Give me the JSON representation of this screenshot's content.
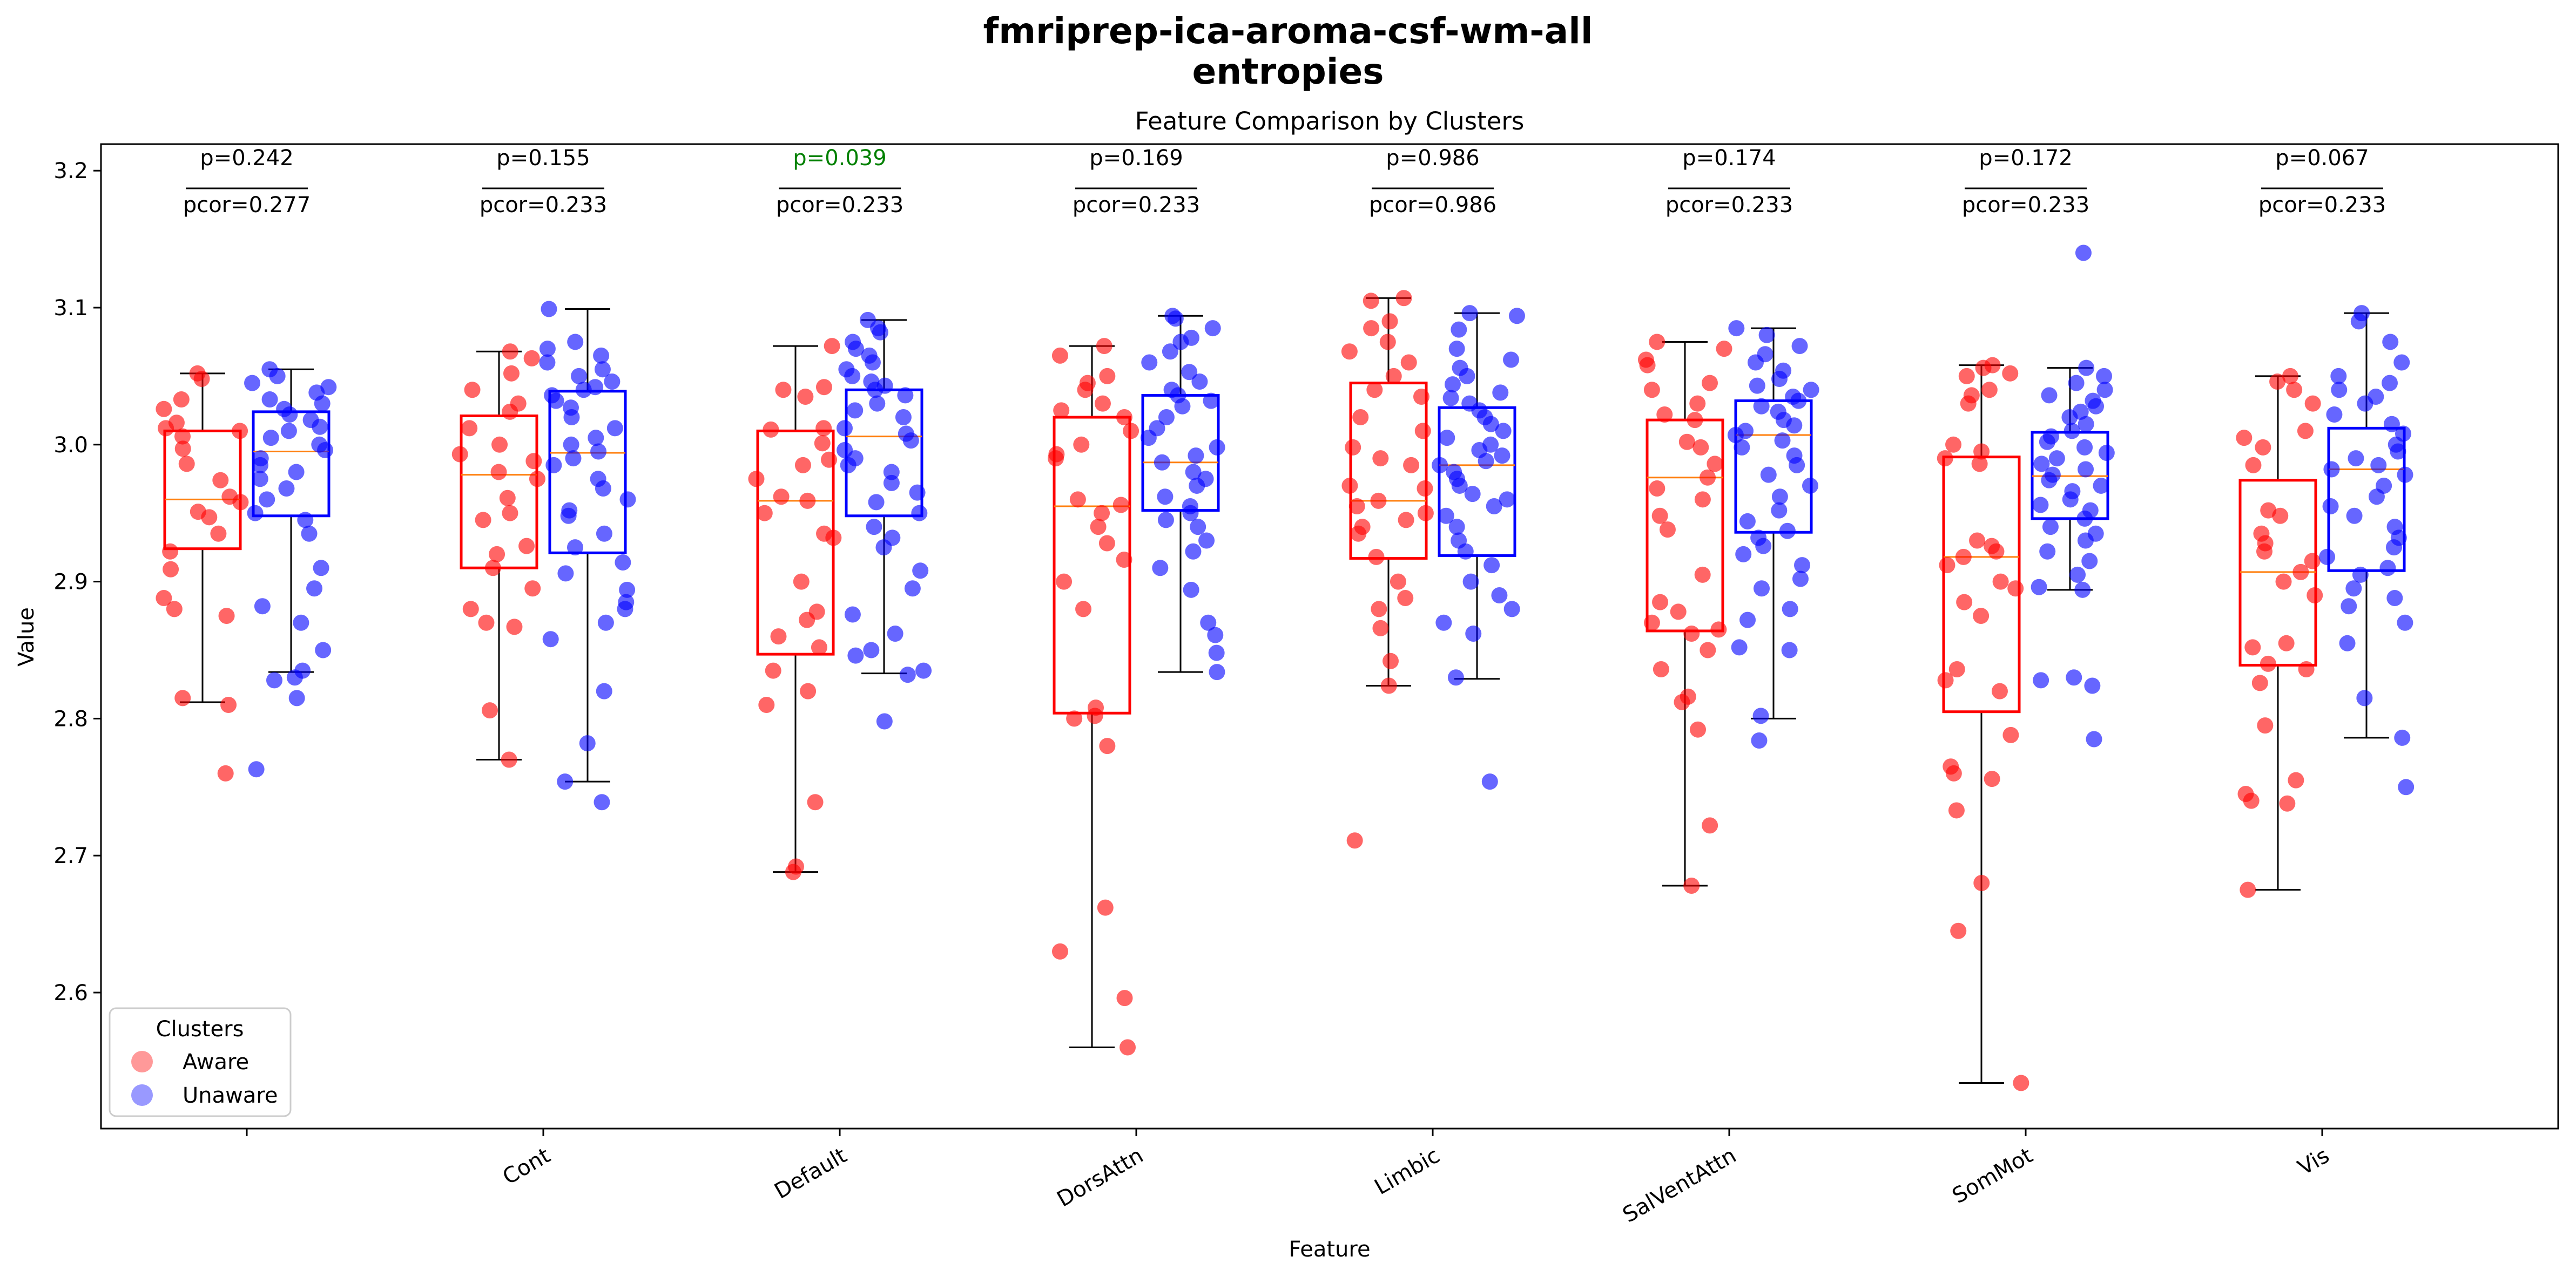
{
  "figure": {
    "title_line1": "fmriprep-ica-aroma-csf-wm-all",
    "title_line2": "entropies"
  },
  "chart_data": {
    "type": "box",
    "title": "Feature Comparison by Clusters",
    "xlabel": "Feature",
    "ylabel": "Value",
    "ylim": [
      2.5,
      3.22
    ],
    "yticks": [
      "2.6",
      "2.7",
      "2.8",
      "2.9",
      "3.0",
      "3.1",
      "3.2"
    ],
    "categories": [
      "",
      "Cont",
      "Default",
      "DorsAttn",
      "Limbic",
      "SalVentAttn",
      "SomMot",
      "Vis"
    ],
    "series": [
      {
        "name": "Aware",
        "color": "#ff0000"
      },
      {
        "name": "Unaware",
        "color": "#0000ff"
      }
    ],
    "legend": {
      "title": "Clusters",
      "position": "lower-left",
      "labels": [
        "Aware",
        "Unaware"
      ]
    },
    "median_color": "#ff7f0e",
    "significant_color": "#008000",
    "groups": [
      {
        "p": "p=0.242",
        "pcor": "pcor=0.277",
        "significant": false,
        "aware": {
          "whislo": 2.812,
          "q1": 2.924,
          "med": 2.96,
          "q3": 3.01,
          "whishi": 3.052,
          "points": [
            3.052,
            3.048,
            3.033,
            3.026,
            3.016,
            3.012,
            3.01,
            3.006,
            2.997,
            2.986,
            2.974,
            2.962,
            2.958,
            2.951,
            2.947,
            2.935,
            2.922,
            2.909,
            2.888,
            2.88,
            2.875,
            2.815,
            2.81,
            2.76
          ]
        },
        "unaware": {
          "whislo": 2.834,
          "q1": 2.948,
          "med": 2.995,
          "q3": 3.024,
          "whishi": 3.055,
          "points": [
            3.055,
            3.05,
            3.045,
            3.042,
            3.038,
            3.033,
            3.03,
            3.026,
            3.022,
            3.018,
            3.013,
            3.01,
            3.005,
            3.0,
            2.996,
            2.99,
            2.985,
            2.98,
            2.975,
            2.968,
            2.96,
            2.95,
            2.945,
            2.935,
            2.91,
            2.895,
            2.882,
            2.87,
            2.85,
            2.835,
            2.83,
            2.828,
            2.815,
            2.763
          ]
        }
      },
      {
        "p": "p=0.155",
        "pcor": "pcor=0.233",
        "significant": false,
        "aware": {
          "whislo": 2.77,
          "q1": 2.91,
          "med": 2.978,
          "q3": 3.021,
          "whishi": 3.068,
          "points": [
            3.068,
            3.063,
            3.052,
            3.04,
            3.03,
            3.024,
            3.012,
            3.0,
            2.993,
            2.988,
            2.98,
            2.975,
            2.961,
            2.95,
            2.945,
            2.926,
            2.92,
            2.91,
            2.895,
            2.88,
            2.87,
            2.867,
            2.806,
            2.77
          ]
        },
        "unaware": {
          "whislo": 2.754,
          "q1": 2.921,
          "med": 2.994,
          "q3": 3.039,
          "whishi": 3.099,
          "points": [
            3.099,
            3.075,
            3.07,
            3.065,
            3.06,
            3.055,
            3.05,
            3.046,
            3.042,
            3.04,
            3.036,
            3.032,
            3.027,
            3.02,
            3.012,
            3.005,
            3.0,
            2.995,
            2.99,
            2.985,
            2.975,
            2.968,
            2.96,
            2.952,
            2.948,
            2.935,
            2.925,
            2.914,
            2.906,
            2.894,
            2.885,
            2.88,
            2.87,
            2.858,
            2.82,
            2.782,
            2.754,
            2.739
          ]
        }
      },
      {
        "p": "p=0.039",
        "pcor": "pcor=0.233",
        "significant": true,
        "aware": {
          "whislo": 2.688,
          "q1": 2.847,
          "med": 2.959,
          "q3": 3.01,
          "whishi": 3.072,
          "points": [
            3.072,
            3.042,
            3.04,
            3.035,
            3.012,
            3.011,
            3.001,
            2.989,
            2.985,
            2.975,
            2.962,
            2.959,
            2.95,
            2.935,
            2.932,
            2.9,
            2.878,
            2.872,
            2.86,
            2.852,
            2.835,
            2.82,
            2.81,
            2.739,
            2.692,
            2.688
          ]
        },
        "unaware": {
          "whislo": 2.833,
          "q1": 2.948,
          "med": 3.006,
          "q3": 3.04,
          "whishi": 3.091,
          "points": [
            3.091,
            3.085,
            3.082,
            3.075,
            3.07,
            3.065,
            3.06,
            3.055,
            3.05,
            3.046,
            3.043,
            3.04,
            3.036,
            3.03,
            3.025,
            3.02,
            3.012,
            3.008,
            3.003,
            2.996,
            2.99,
            2.985,
            2.98,
            2.972,
            2.965,
            2.958,
            2.95,
            2.94,
            2.932,
            2.925,
            2.908,
            2.895,
            2.876,
            2.862,
            2.85,
            2.846,
            2.835,
            2.832,
            2.798
          ]
        }
      },
      {
        "p": "p=0.169",
        "pcor": "pcor=0.233",
        "significant": false,
        "aware": {
          "whislo": 2.56,
          "q1": 2.804,
          "med": 2.955,
          "q3": 3.02,
          "whishi": 3.072,
          "points": [
            3.072,
            3.065,
            3.05,
            3.045,
            3.04,
            3.03,
            3.025,
            3.02,
            3.01,
            3.0,
            2.993,
            2.99,
            2.96,
            2.956,
            2.95,
            2.94,
            2.928,
            2.916,
            2.9,
            2.88,
            2.808,
            2.802,
            2.8,
            2.78,
            2.662,
            2.63,
            2.596,
            2.56
          ]
        },
        "unaware": {
          "whislo": 2.834,
          "q1": 2.952,
          "med": 2.987,
          "q3": 3.036,
          "whishi": 3.094,
          "points": [
            3.094,
            3.092,
            3.085,
            3.078,
            3.075,
            3.068,
            3.06,
            3.053,
            3.046,
            3.04,
            3.036,
            3.032,
            3.028,
            3.02,
            3.012,
            3.005,
            2.998,
            2.992,
            2.987,
            2.98,
            2.975,
            2.97,
            2.962,
            2.955,
            2.95,
            2.945,
            2.94,
            2.93,
            2.922,
            2.91,
            2.894,
            2.87,
            2.861,
            2.848,
            2.834
          ]
        }
      },
      {
        "p": "p=0.986",
        "pcor": "pcor=0.986",
        "significant": false,
        "aware": {
          "whislo": 2.824,
          "q1": 2.917,
          "med": 2.959,
          "q3": 3.045,
          "whishi": 3.107,
          "points": [
            3.107,
            3.105,
            3.09,
            3.085,
            3.075,
            3.068,
            3.06,
            3.05,
            3.04,
            3.035,
            3.02,
            3.01,
            2.998,
            2.99,
            2.985,
            2.97,
            2.968,
            2.959,
            2.955,
            2.95,
            2.945,
            2.94,
            2.935,
            2.918,
            2.9,
            2.888,
            2.88,
            2.866,
            2.842,
            2.824,
            2.711
          ]
        },
        "unaware": {
          "whislo": 2.829,
          "q1": 2.919,
          "med": 2.985,
          "q3": 3.027,
          "whishi": 3.096,
          "points": [
            3.096,
            3.094,
            3.084,
            3.07,
            3.062,
            3.056,
            3.05,
            3.044,
            3.038,
            3.034,
            3.03,
            3.025,
            3.02,
            3.015,
            3.01,
            3.005,
            3.0,
            2.996,
            2.992,
            2.988,
            2.985,
            2.98,
            2.975,
            2.97,
            2.964,
            2.96,
            2.955,
            2.948,
            2.94,
            2.93,
            2.922,
            2.912,
            2.9,
            2.89,
            2.88,
            2.87,
            2.862,
            2.83,
            2.754
          ]
        }
      },
      {
        "p": "p=0.174",
        "pcor": "pcor=0.233",
        "significant": false,
        "aware": {
          "whislo": 2.678,
          "q1": 2.864,
          "med": 2.976,
          "q3": 3.018,
          "whishi": 3.075,
          "points": [
            3.075,
            3.07,
            3.062,
            3.058,
            3.045,
            3.04,
            3.03,
            3.022,
            3.018,
            3.002,
            2.998,
            2.986,
            2.976,
            2.968,
            2.96,
            2.948,
            2.938,
            2.905,
            2.885,
            2.878,
            2.87,
            2.865,
            2.862,
            2.85,
            2.836,
            2.816,
            2.812,
            2.792,
            2.722,
            2.678
          ]
        },
        "unaware": {
          "whislo": 2.8,
          "q1": 2.936,
          "med": 3.007,
          "q3": 3.032,
          "whishi": 3.085,
          "points": [
            3.085,
            3.08,
            3.072,
            3.066,
            3.06,
            3.054,
            3.048,
            3.043,
            3.04,
            3.035,
            3.032,
            3.028,
            3.024,
            3.018,
            3.014,
            3.01,
            3.007,
            3.003,
            2.998,
            2.992,
            2.985,
            2.978,
            2.97,
            2.962,
            2.952,
            2.944,
            2.937,
            2.932,
            2.926,
            2.92,
            2.912,
            2.902,
            2.895,
            2.88,
            2.872,
            2.852,
            2.85,
            2.802,
            2.784
          ]
        }
      },
      {
        "p": "p=0.172",
        "pcor": "pcor=0.233",
        "significant": false,
        "aware": {
          "whislo": 2.534,
          "q1": 2.805,
          "med": 2.918,
          "q3": 2.991,
          "whishi": 3.058,
          "points": [
            3.058,
            3.056,
            3.052,
            3.05,
            3.04,
            3.036,
            3.03,
            3.0,
            2.995,
            2.99,
            2.986,
            2.93,
            2.926,
            2.922,
            2.918,
            2.912,
            2.9,
            2.895,
            2.885,
            2.875,
            2.836,
            2.828,
            2.82,
            2.788,
            2.765,
            2.76,
            2.756,
            2.733,
            2.68,
            2.645,
            2.534
          ]
        },
        "unaware": {
          "whislo": 2.894,
          "q1": 2.946,
          "med": 2.977,
          "q3": 3.009,
          "whishi": 3.056,
          "points": [
            3.14,
            3.056,
            3.05,
            3.045,
            3.04,
            3.036,
            3.032,
            3.028,
            3.024,
            3.02,
            3.015,
            3.01,
            3.006,
            3.002,
            2.998,
            2.994,
            2.99,
            2.986,
            2.982,
            2.978,
            2.974,
            2.97,
            2.966,
            2.96,
            2.956,
            2.952,
            2.946,
            2.94,
            2.935,
            2.93,
            2.922,
            2.915,
            2.905,
            2.896,
            2.894,
            2.83,
            2.828,
            2.824,
            2.785
          ]
        }
      },
      {
        "p": "p=0.067",
        "pcor": "pcor=0.233",
        "significant": false,
        "aware": {
          "whislo": 2.675,
          "q1": 2.839,
          "med": 2.907,
          "q3": 2.974,
          "whishi": 3.05,
          "points": [
            3.05,
            3.046,
            3.04,
            3.03,
            3.01,
            3.005,
            2.998,
            2.985,
            2.952,
            2.948,
            2.935,
            2.928,
            2.922,
            2.915,
            2.907,
            2.9,
            2.89,
            2.855,
            2.852,
            2.84,
            2.836,
            2.826,
            2.795,
            2.755,
            2.745,
            2.74,
            2.738,
            2.675
          ]
        },
        "unaware": {
          "whislo": 2.786,
          "q1": 2.908,
          "med": 2.982,
          "q3": 3.012,
          "whishi": 3.096,
          "points": [
            3.096,
            3.09,
            3.075,
            3.06,
            3.05,
            3.045,
            3.04,
            3.035,
            3.03,
            3.022,
            3.015,
            3.008,
            3.0,
            2.995,
            2.99,
            2.985,
            2.982,
            2.978,
            2.97,
            2.962,
            2.955,
            2.948,
            2.94,
            2.932,
            2.925,
            2.918,
            2.91,
            2.905,
            2.895,
            2.888,
            2.882,
            2.87,
            2.855,
            2.815,
            2.786,
            2.75
          ]
        }
      }
    ]
  }
}
